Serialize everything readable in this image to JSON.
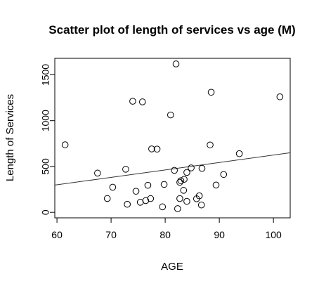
{
  "chart_data": {
    "type": "scatter",
    "title": "Scatter plot of length of services vs age (M)",
    "xlabel": "AGE",
    "ylabel": "Length of Services",
    "xlim": [
      59.6,
      103.1
    ],
    "ylim": [
      -60,
      1680
    ],
    "x_ticks": [
      "60",
      "70",
      "80",
      "90",
      "100"
    ],
    "x_tick_values": [
      60,
      70,
      80,
      90,
      100
    ],
    "y_ticks": [
      "0",
      "500",
      "1000",
      "1500"
    ],
    "y_tick_values": [
      0,
      500,
      1000,
      1500
    ],
    "grid": false,
    "legend": false,
    "marker": "open-circle",
    "colors": {
      "points": "#000000",
      "line": "#333333",
      "axes": "#000000"
    },
    "trendline": {
      "type": "linear-fit",
      "from": [
        59.6,
        297
      ],
      "to": [
        103.1,
        650
      ]
    },
    "points": [
      {
        "x": 61.5,
        "y": 737
      },
      {
        "x": 67.5,
        "y": 428
      },
      {
        "x": 69.3,
        "y": 151
      },
      {
        "x": 70.3,
        "y": 274
      },
      {
        "x": 72.7,
        "y": 470
      },
      {
        "x": 73.0,
        "y": 88
      },
      {
        "x": 74.0,
        "y": 1212
      },
      {
        "x": 74.6,
        "y": 230
      },
      {
        "x": 75.4,
        "y": 110
      },
      {
        "x": 75.8,
        "y": 1205
      },
      {
        "x": 76.4,
        "y": 128
      },
      {
        "x": 76.8,
        "y": 295
      },
      {
        "x": 77.3,
        "y": 150
      },
      {
        "x": 77.5,
        "y": 692
      },
      {
        "x": 78.5,
        "y": 690
      },
      {
        "x": 79.5,
        "y": 60
      },
      {
        "x": 79.8,
        "y": 305
      },
      {
        "x": 81.0,
        "y": 1062
      },
      {
        "x": 81.7,
        "y": 458
      },
      {
        "x": 82.0,
        "y": 1619
      },
      {
        "x": 82.3,
        "y": 40
      },
      {
        "x": 82.7,
        "y": 328
      },
      {
        "x": 82.9,
        "y": 345
      },
      {
        "x": 82.7,
        "y": 150
      },
      {
        "x": 83.4,
        "y": 240
      },
      {
        "x": 83.5,
        "y": 360
      },
      {
        "x": 84.0,
        "y": 435
      },
      {
        "x": 84.0,
        "y": 120
      },
      {
        "x": 84.8,
        "y": 485
      },
      {
        "x": 85.8,
        "y": 148
      },
      {
        "x": 86.3,
        "y": 180
      },
      {
        "x": 86.7,
        "y": 80
      },
      {
        "x": 86.8,
        "y": 480
      },
      {
        "x": 88.3,
        "y": 735
      },
      {
        "x": 88.5,
        "y": 1310
      },
      {
        "x": 89.4,
        "y": 298
      },
      {
        "x": 90.8,
        "y": 413
      },
      {
        "x": 93.7,
        "y": 640
      },
      {
        "x": 101.2,
        "y": 1260
      }
    ]
  }
}
